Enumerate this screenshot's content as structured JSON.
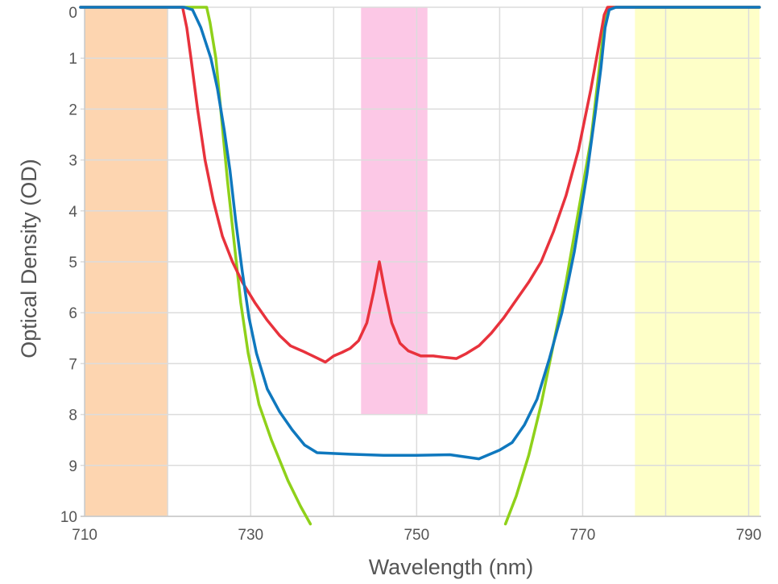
{
  "chart_data": {
    "type": "line",
    "xlabel": "Wavelength (nm)",
    "ylabel": "Optical Density (OD)",
    "xlim": [
      709.5,
      791.5
    ],
    "ylim": [
      0,
      10
    ],
    "y_inverted": true,
    "grid": true,
    "x_ticks": [
      710,
      730,
      750,
      770,
      790
    ],
    "x_tick_labels": [
      "710",
      "730",
      "750",
      "770",
      "790"
    ],
    "x_minor_gridlines": [
      720,
      740,
      760,
      780
    ],
    "y_ticks": [
      0,
      1,
      2,
      3,
      4,
      5,
      6,
      7,
      8,
      9,
      10
    ],
    "y_tick_labels": [
      "0",
      "1",
      "2",
      "3",
      "4",
      "5",
      "6",
      "7",
      "8",
      "9",
      "10"
    ],
    "bands": [
      {
        "x0": 710,
        "x1": 720,
        "y0": 0,
        "y1": 10,
        "color": "#fdd5b0"
      },
      {
        "x0": 743.3,
        "x1": 751.3,
        "y0": 0,
        "y1": 8,
        "color": "#fcc8e6"
      },
      {
        "x0": 776.3,
        "x1": 791.3,
        "y0": 0,
        "y1": 10,
        "color": "#feffc8"
      }
    ],
    "series": [
      {
        "color": "#8fd11a",
        "points": [
          [
            709.5,
            0
          ],
          [
            724.7,
            0
          ],
          [
            725.1,
            0.3
          ],
          [
            725.8,
            1.0
          ],
          [
            726.5,
            2.2
          ],
          [
            727.2,
            3.4
          ],
          [
            728.0,
            4.6
          ],
          [
            728.8,
            5.8
          ],
          [
            729.7,
            6.8
          ],
          [
            731.0,
            7.8
          ],
          [
            732.5,
            8.5
          ],
          [
            734.5,
            9.3
          ],
          [
            736.0,
            9.8
          ],
          [
            737.2,
            10.15
          ]
        ]
      },
      {
        "color": "#8fd11a",
        "points": [
          [
            760.7,
            10.15
          ],
          [
            762.0,
            9.6
          ],
          [
            763.5,
            8.8
          ],
          [
            765.0,
            7.8
          ],
          [
            766.5,
            6.6
          ],
          [
            768.0,
            5.4
          ],
          [
            769.5,
            4.0
          ],
          [
            771.0,
            2.6
          ],
          [
            772.0,
            1.2
          ],
          [
            772.7,
            0.2
          ],
          [
            773.2,
            0
          ],
          [
            791.3,
            0
          ]
        ]
      },
      {
        "color": "#e8323c",
        "points": [
          [
            709.5,
            0
          ],
          [
            721.8,
            0
          ],
          [
            722.3,
            0.4
          ],
          [
            722.8,
            1.0
          ],
          [
            723.6,
            2.0
          ],
          [
            724.5,
            3.0
          ],
          [
            725.5,
            3.8
          ],
          [
            726.6,
            4.5
          ],
          [
            727.8,
            5.0
          ],
          [
            729.0,
            5.4
          ],
          [
            730.5,
            5.8
          ],
          [
            732.0,
            6.15
          ],
          [
            733.5,
            6.45
          ],
          [
            734.8,
            6.65
          ],
          [
            736.2,
            6.75
          ],
          [
            737.5,
            6.85
          ],
          [
            739.0,
            6.97
          ],
          [
            740.0,
            6.85
          ],
          [
            741.0,
            6.78
          ],
          [
            742.0,
            6.7
          ],
          [
            743.0,
            6.55
          ],
          [
            744.0,
            6.2
          ],
          [
            744.8,
            5.6
          ],
          [
            745.5,
            5.0
          ],
          [
            746.2,
            5.6
          ],
          [
            747.0,
            6.2
          ],
          [
            748.0,
            6.6
          ],
          [
            749.0,
            6.75
          ],
          [
            750.5,
            6.85
          ],
          [
            752.0,
            6.85
          ],
          [
            753.5,
            6.88
          ],
          [
            754.8,
            6.9
          ],
          [
            756.0,
            6.8
          ],
          [
            757.5,
            6.65
          ],
          [
            759.0,
            6.4
          ],
          [
            760.5,
            6.1
          ],
          [
            762.0,
            5.75
          ],
          [
            763.5,
            5.4
          ],
          [
            765.0,
            5.0
          ],
          [
            766.5,
            4.4
          ],
          [
            768.0,
            3.7
          ],
          [
            769.5,
            2.8
          ],
          [
            771.0,
            1.6
          ],
          [
            772.0,
            0.7
          ],
          [
            772.6,
            0.15
          ],
          [
            773.0,
            0
          ],
          [
            791.3,
            0
          ]
        ]
      },
      {
        "color": "#0f78be",
        "points": [
          [
            709.5,
            0
          ],
          [
            722.0,
            0
          ],
          [
            723.0,
            0.05
          ],
          [
            724.0,
            0.4
          ],
          [
            725.2,
            1.0
          ],
          [
            726.0,
            1.6
          ],
          [
            726.8,
            2.4
          ],
          [
            727.5,
            3.2
          ],
          [
            728.2,
            4.2
          ],
          [
            729.0,
            5.2
          ],
          [
            729.8,
            6.1
          ],
          [
            730.7,
            6.8
          ],
          [
            732.0,
            7.5
          ],
          [
            733.5,
            7.95
          ],
          [
            735.0,
            8.3
          ],
          [
            736.5,
            8.6
          ],
          [
            738.0,
            8.75
          ],
          [
            742.0,
            8.78
          ],
          [
            746.0,
            8.8
          ],
          [
            750.0,
            8.8
          ],
          [
            754.0,
            8.79
          ],
          [
            757.5,
            8.87
          ],
          [
            760.0,
            8.7
          ],
          [
            761.5,
            8.55
          ],
          [
            763.0,
            8.2
          ],
          [
            764.5,
            7.7
          ],
          [
            766.0,
            6.9
          ],
          [
            767.5,
            6.0
          ],
          [
            769.0,
            4.8
          ],
          [
            770.5,
            3.3
          ],
          [
            771.5,
            2.1
          ],
          [
            772.2,
            1.2
          ],
          [
            772.7,
            0.4
          ],
          [
            773.2,
            0.05
          ],
          [
            774.0,
            0
          ],
          [
            791.3,
            0
          ]
        ]
      }
    ]
  }
}
